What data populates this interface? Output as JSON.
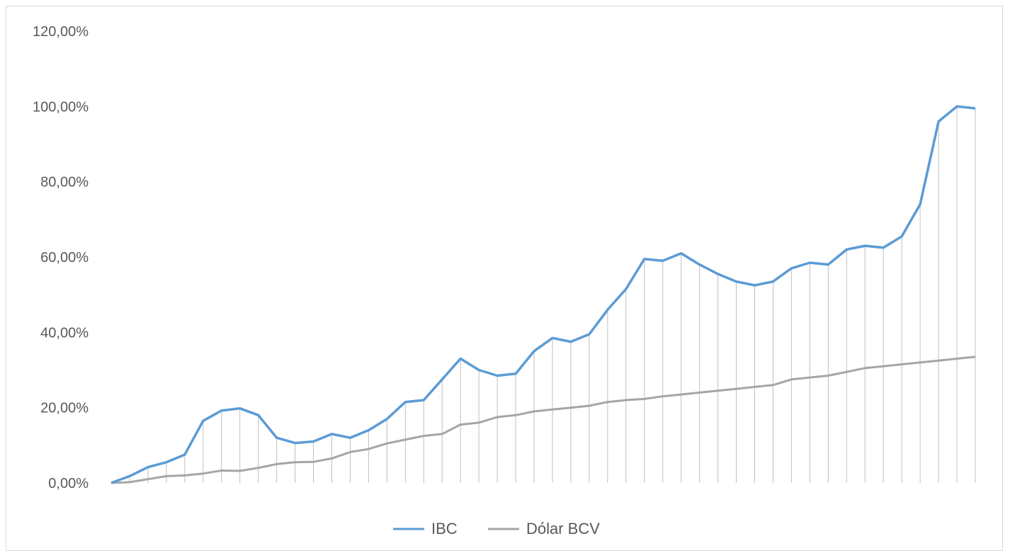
{
  "chart_data": {
    "type": "line",
    "title": "",
    "xlabel": "",
    "ylabel": "",
    "ylim": [
      0,
      120
    ],
    "yticks": [
      "0,00%",
      "20,00%",
      "40,00%",
      "60,00%",
      "80,00%",
      "100,00%",
      "120,00%"
    ],
    "grid": false,
    "drop_lines": true,
    "legend_position": "bottom",
    "colors": {
      "IBC": "#5b9bd5",
      "Dólar BCV": "#a5a5a5"
    },
    "series": [
      {
        "name": "IBC",
        "values": [
          0,
          1.8,
          4.2,
          5.5,
          7.5,
          16.5,
          19.2,
          19.8,
          18.0,
          12.0,
          10.6,
          11.0,
          13.0,
          12.0,
          14.0,
          17.0,
          21.5,
          22.0,
          27.5,
          33.0,
          30.0,
          28.5,
          29.0,
          35.0,
          38.5,
          37.5,
          39.5,
          46.0,
          51.5,
          59.5,
          59.0,
          61.0,
          58.0,
          55.5,
          53.5,
          52.5,
          53.5,
          57.0,
          58.5,
          58.0,
          62.0,
          63.0,
          62.5,
          65.5,
          74.0,
          96.0,
          100.0,
          99.5
        ]
      },
      {
        "name": "Dólar BCV",
        "values": [
          0,
          0.2,
          1.0,
          1.8,
          2.0,
          2.5,
          3.3,
          3.2,
          4.0,
          5.0,
          5.5,
          5.6,
          6.5,
          8.2,
          9.0,
          10.5,
          11.5,
          12.5,
          13.0,
          15.5,
          16.0,
          17.5,
          18.0,
          19.0,
          19.5,
          20.0,
          20.5,
          21.5,
          22.0,
          22.3,
          23.0,
          23.5,
          24.0,
          24.5,
          25.0,
          25.5,
          26.0,
          27.5,
          28.0,
          28.5,
          29.5,
          30.5,
          31.0,
          31.5,
          32.0,
          32.5,
          33.0,
          33.5
        ]
      }
    ]
  }
}
